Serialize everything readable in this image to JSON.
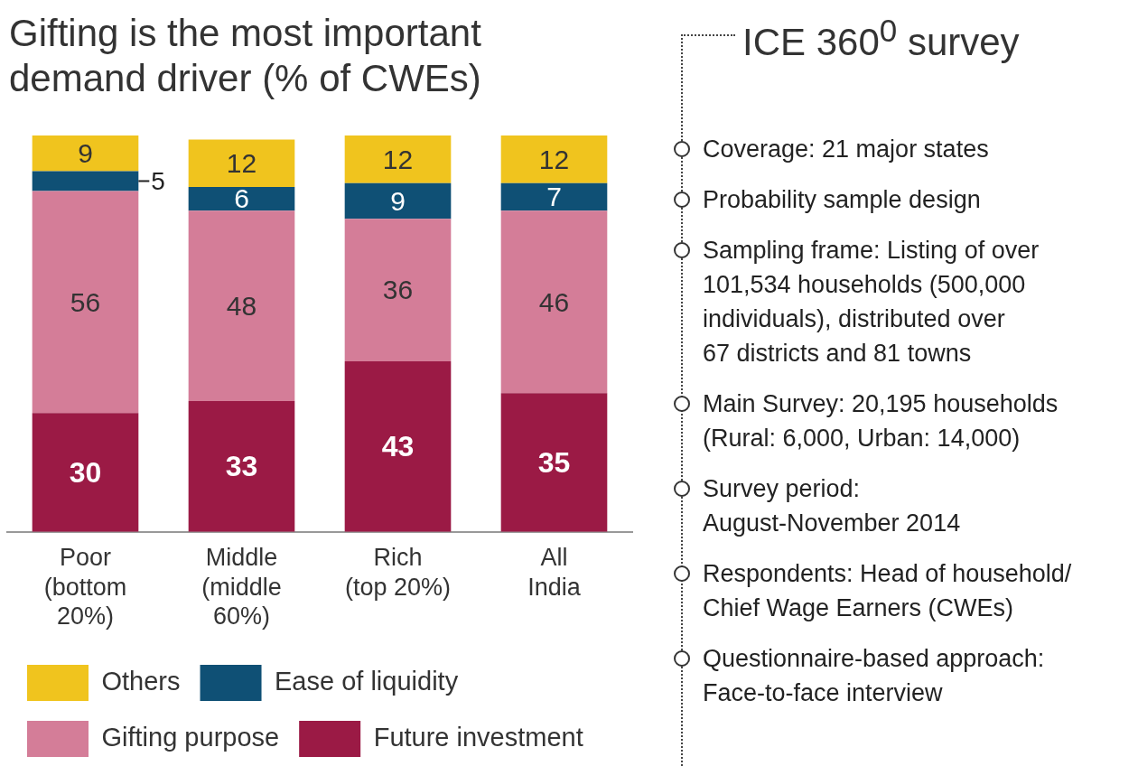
{
  "chart_data": [
    {
      "type": "bar",
      "title": "Gifting is the most important\ndemand driver (% of CWEs)",
      "categories": [
        "Poor\n(bottom\n20%)",
        "Middle\n(middle\n60%)",
        "Rich\n(top 20%)",
        "All\nIndia"
      ],
      "stacked": true,
      "data_labels": true,
      "legend": "bottom",
      "series": [
        {
          "name": "Future investment",
          "color": "#9b1a45",
          "values": [
            30,
            33,
            43,
            35
          ]
        },
        {
          "name": "Gifting purpose",
          "color": "#d47d98",
          "values": [
            56,
            48,
            36,
            46
          ]
        },
        {
          "name": "Ease of liquidity",
          "color": "#0f5075",
          "values": [
            5,
            6,
            9,
            7
          ]
        },
        {
          "name": "Others",
          "color": "#f0c41e",
          "values": [
            9,
            12,
            12,
            12
          ]
        }
      ]
    },
    {
      "type": "other",
      "title": "ICE 360$^{0}$ survey",
      "annotations": [
        "Coverage: 21 major states",
        "Probability sample design",
        "Sampling frame: Listing of over\n101,534 households (500,000\nindividuals), distributed over\n67 districts and 81 towns",
        "Main Survey: 20,195 households\n(Rural: 6,000, Urban: 14,000)",
        "Survey period:\nAugust-November 2014",
        "Respondents: Head of household/\nChief Wage Earners (CWEs)",
        "Questionnaire-based approach:\nFace-to-face interview"
      ]
    }
  ]
}
